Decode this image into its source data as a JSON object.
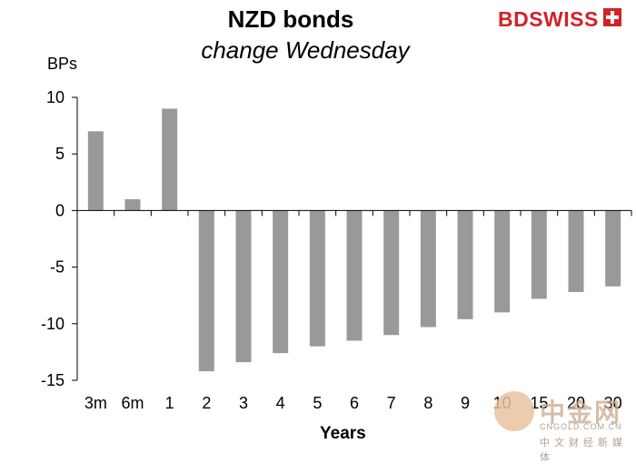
{
  "chart_data": {
    "type": "bar",
    "title": "NZD bonds",
    "subtitle": "change Wednesday",
    "ylabel": "BPs",
    "xlabel": "Years",
    "ylim": [
      -15,
      10
    ],
    "yticks": [
      10,
      5,
      0,
      -5,
      -10,
      -15
    ],
    "grid": false,
    "categories": [
      "3m",
      "6m",
      "1",
      "2",
      "3",
      "4",
      "5",
      "6",
      "7",
      "8",
      "9",
      "10",
      "15",
      "20",
      "30"
    ],
    "values": [
      7,
      1,
      9,
      -14.2,
      -13.4,
      -12.6,
      -12.0,
      -11.5,
      -11.0,
      -10.3,
      -9.6,
      -9.0,
      -7.8,
      -7.2,
      -6.7
    ],
    "bar_color": "#999999"
  },
  "brand": {
    "name": "BDSWISS",
    "color": "#d0232a"
  },
  "watermark": {
    "text": "中金网",
    "domain": "CNGOLD.COM.CN",
    "tagline": "中文财经新媒体"
  }
}
